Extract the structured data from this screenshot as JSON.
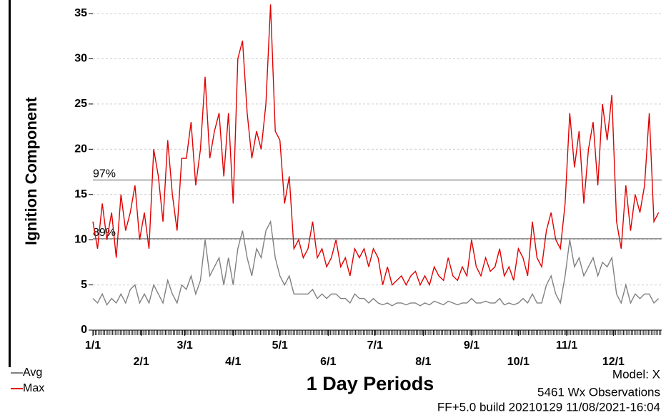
{
  "chart_data": {
    "type": "line",
    "y_label": "Ignition Component",
    "x_label": "1 Day Periods",
    "notes": [
      "Model: X",
      "5461 Wx Observations",
      "FF+5.0 build 20210129 11/08/2021-16:04"
    ],
    "x": [
      0,
      3,
      6,
      9,
      12,
      15,
      18,
      21,
      24,
      27,
      30,
      33,
      36,
      39,
      42,
      45,
      48,
      51,
      54,
      57,
      60,
      63,
      66,
      69,
      72,
      75,
      78,
      81,
      84,
      87,
      90,
      93,
      96,
      99,
      102,
      105,
      108,
      111,
      114,
      117,
      120,
      123,
      126,
      129,
      132,
      135,
      138,
      141,
      144,
      147,
      150,
      153,
      156,
      159,
      162,
      165,
      168,
      171,
      174,
      177,
      180,
      183,
      186,
      189,
      192,
      195,
      198,
      201,
      204,
      207,
      210,
      213,
      216,
      219,
      222,
      225,
      228,
      231,
      234,
      237,
      240,
      243,
      246,
      249,
      252,
      255,
      258,
      261,
      264,
      267,
      270,
      273,
      276,
      279,
      282,
      285,
      288,
      291,
      294,
      297,
      300,
      303,
      306,
      309,
      312,
      315,
      318,
      321,
      324,
      327,
      330,
      333,
      336,
      339,
      342,
      345,
      348,
      351,
      354,
      357,
      360,
      363
    ],
    "series": [
      {
        "name": "Avg",
        "color": "#808080",
        "values": [
          3.5,
          3,
          4,
          2.8,
          3.5,
          3,
          4,
          3,
          4.5,
          5,
          3,
          4,
          3,
          5,
          4,
          3,
          5.5,
          4,
          3,
          5,
          4.5,
          6,
          4,
          5.5,
          10,
          6,
          7,
          8,
          5,
          8,
          5,
          9,
          11,
          8,
          6,
          9,
          8,
          11,
          12,
          8,
          6,
          5,
          6,
          4,
          4,
          4,
          4,
          4.5,
          3.5,
          4,
          3.5,
          4,
          4,
          3.5,
          3.5,
          3,
          4,
          3.5,
          3.5,
          3,
          3.5,
          3,
          2.8,
          3,
          2.7,
          3,
          3,
          2.8,
          3,
          3,
          2.7,
          3,
          2.8,
          3.2,
          3,
          2.8,
          3.2,
          3,
          2.8,
          3,
          3,
          3.5,
          3,
          3,
          3.2,
          3,
          3,
          3.5,
          2.8,
          3,
          2.8,
          3,
          3.5,
          3,
          4,
          3,
          3,
          5,
          6,
          4,
          3,
          6,
          10,
          7,
          8,
          6,
          7,
          8,
          6,
          7.5,
          7,
          8,
          4,
          3,
          5,
          3,
          4,
          3.5,
          4,
          4,
          3,
          3.5
        ]
      },
      {
        "name": "Max",
        "color": "#e00000",
        "values": [
          12,
          9,
          14,
          10,
          13,
          8,
          15,
          11,
          13,
          16,
          10,
          13,
          9,
          20,
          17,
          12,
          21,
          15,
          11,
          19,
          19,
          23,
          16,
          20,
          28,
          19,
          22,
          24,
          17,
          24,
          14,
          30,
          32,
          24,
          19,
          22,
          20,
          25,
          36,
          22,
          21,
          14,
          17,
          9,
          10,
          8,
          9,
          12,
          8,
          9,
          7,
          8,
          10,
          7,
          8,
          6,
          9,
          8,
          9,
          7,
          9,
          8,
          5,
          7,
          5,
          5.5,
          6,
          5,
          6,
          6.5,
          5,
          6,
          5,
          7,
          6,
          5.5,
          8,
          6,
          5.5,
          7,
          6,
          10,
          7,
          6,
          8,
          6.5,
          7,
          9,
          6,
          7,
          5.5,
          9,
          8,
          6,
          12,
          8,
          7,
          11,
          13,
          10,
          9,
          14,
          24,
          18,
          22,
          14,
          20,
          23,
          16,
          25,
          21,
          26,
          12,
          9,
          16,
          11,
          15,
          13,
          16,
          24,
          12,
          13
        ]
      }
    ],
    "reference_lines": [
      {
        "label": "97%",
        "value": 16.6
      },
      {
        "label": "89%",
        "value": 10.1
      }
    ],
    "xlim": [
      0,
      365
    ],
    "xticks": [
      {
        "value": 0,
        "label": "1/1"
      },
      {
        "value": 31,
        "label": "2/1"
      },
      {
        "value": 59,
        "label": "3/1"
      },
      {
        "value": 90,
        "label": "4/1"
      },
      {
        "value": 120,
        "label": "5/1"
      },
      {
        "value": 151,
        "label": "6/1"
      },
      {
        "value": 181,
        "label": "7/1"
      },
      {
        "value": 212,
        "label": "8/1"
      },
      {
        "value": 243,
        "label": "9/1"
      },
      {
        "value": 273,
        "label": "10/1"
      },
      {
        "value": 304,
        "label": "11/1"
      },
      {
        "value": 334,
        "label": "12/1"
      }
    ],
    "ylim": [
      0,
      36.5
    ],
    "yticks": [
      0,
      5,
      10,
      15,
      20,
      25,
      30,
      35
    ],
    "grid": true,
    "legend": "bottom-left"
  }
}
